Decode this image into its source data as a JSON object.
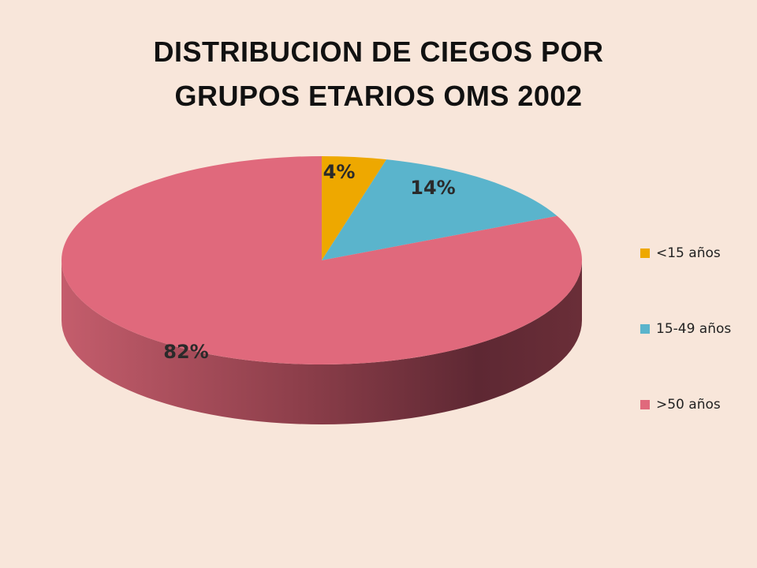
{
  "chart_data": {
    "type": "pie",
    "title_lines": [
      "DISTRIBUCION DE CIEGOS POR",
      "GRUPOS ETARIOS OMS 2002"
    ],
    "categories": [
      "<15 años",
      "15-49 años",
      ">50 años"
    ],
    "values": [
      4,
      14,
      82
    ],
    "data_labels": [
      "4%",
      "14%",
      "82%"
    ],
    "colors": [
      "#eea800",
      "#5ab4cc",
      "#e0697c"
    ],
    "legend_position": "right",
    "style": "3d"
  }
}
